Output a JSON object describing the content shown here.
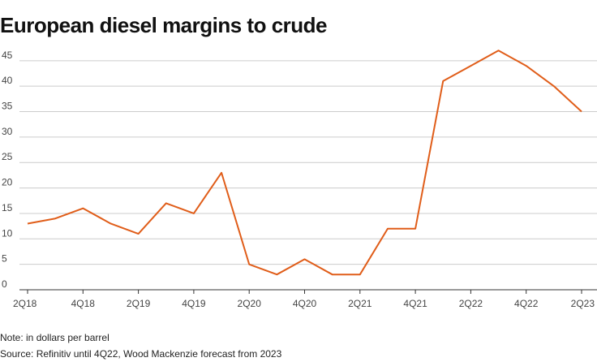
{
  "chart_data": {
    "type": "line",
    "title": "European diesel margins to crude",
    "categories": [
      "2Q18",
      null,
      "4Q18",
      null,
      "2Q19",
      null,
      "4Q19",
      null,
      "2Q20",
      null,
      "4Q20",
      null,
      "2Q21",
      null,
      "4Q21",
      null,
      "2Q22",
      null,
      "4Q22",
      null,
      "2Q23"
    ],
    "series": [
      {
        "name": "European diesel margins to crude",
        "color": "#e05d19",
        "values": [
          13,
          14,
          16,
          13,
          11,
          17,
          15,
          23,
          5,
          3,
          6,
          3,
          3,
          12,
          12,
          41,
          44,
          47,
          44,
          40,
          35
        ]
      }
    ],
    "ylim": [
      0,
      48
    ],
    "yticks": [
      0,
      5,
      10,
      15,
      20,
      25,
      30,
      35,
      40,
      45
    ],
    "grid": true,
    "notes": [
      "Note: in dollars per barrel",
      "Source: Refinitiv until 4Q22, Wood Mackenzie forecast from 2023"
    ]
  }
}
